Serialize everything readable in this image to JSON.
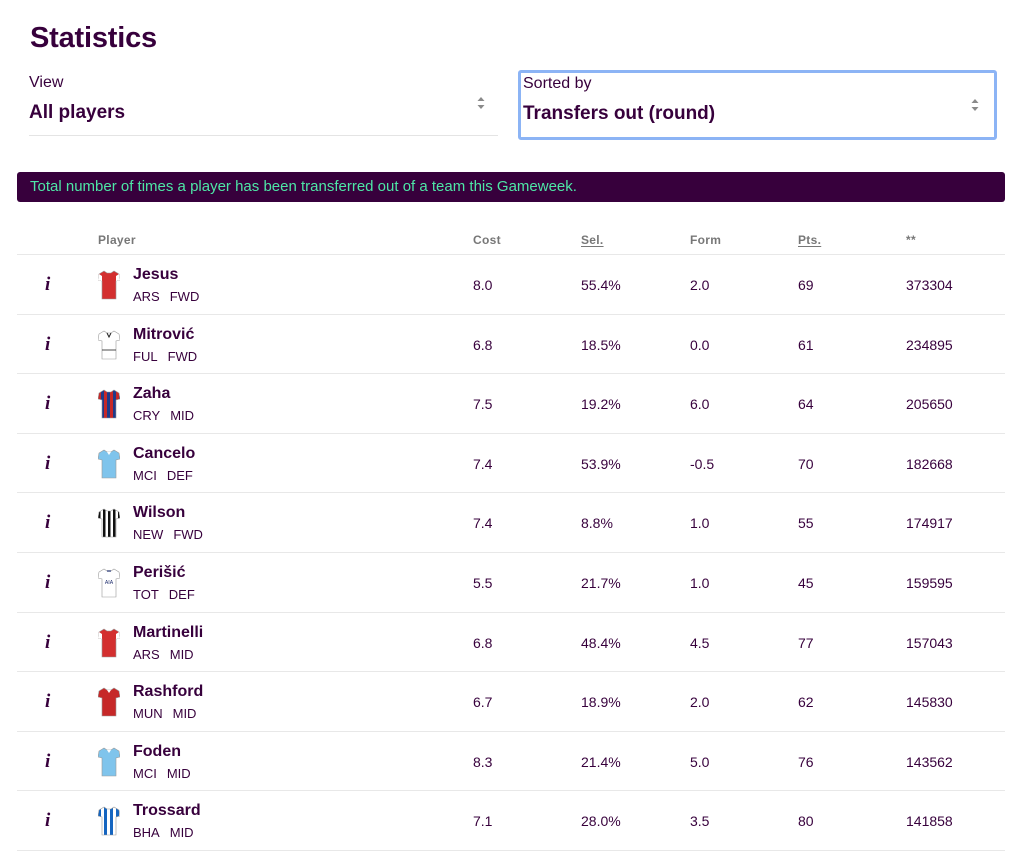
{
  "page": {
    "title": "Statistics"
  },
  "filters": {
    "view": {
      "label": "View",
      "value": "All players"
    },
    "sort": {
      "label": "Sorted by",
      "value": "Transfers out (round)"
    }
  },
  "banner": {
    "text": "Total number of times a player has been transferred out of a team this Gameweek."
  },
  "table": {
    "columns": {
      "player": "Player",
      "cost": "Cost",
      "sel": "Sel.",
      "form": "Form",
      "pts": "Pts.",
      "stat": "**"
    },
    "rows": [
      {
        "name": "Jesus",
        "team": "ARS",
        "pos": "FWD",
        "cost": "8.0",
        "sel": "55.4%",
        "form": "2.0",
        "pts": "69",
        "stat": "373304",
        "shirt": "ars"
      },
      {
        "name": "Mitrović",
        "team": "FUL",
        "pos": "FWD",
        "cost": "6.8",
        "sel": "18.5%",
        "form": "0.0",
        "pts": "61",
        "stat": "234895",
        "shirt": "ful"
      },
      {
        "name": "Zaha",
        "team": "CRY",
        "pos": "MID",
        "cost": "7.5",
        "sel": "19.2%",
        "form": "6.0",
        "pts": "64",
        "stat": "205650",
        "shirt": "cry"
      },
      {
        "name": "Cancelo",
        "team": "MCI",
        "pos": "DEF",
        "cost": "7.4",
        "sel": "53.9%",
        "form": "-0.5",
        "pts": "70",
        "stat": "182668",
        "shirt": "mci"
      },
      {
        "name": "Wilson",
        "team": "NEW",
        "pos": "FWD",
        "cost": "7.4",
        "sel": "8.8%",
        "form": "1.0",
        "pts": "55",
        "stat": "174917",
        "shirt": "new"
      },
      {
        "name": "Perišić",
        "team": "TOT",
        "pos": "DEF",
        "cost": "5.5",
        "sel": "21.7%",
        "form": "1.0",
        "pts": "45",
        "stat": "159595",
        "shirt": "tot"
      },
      {
        "name": "Martinelli",
        "team": "ARS",
        "pos": "MID",
        "cost": "6.8",
        "sel": "48.4%",
        "form": "4.5",
        "pts": "77",
        "stat": "157043",
        "shirt": "ars"
      },
      {
        "name": "Rashford",
        "team": "MUN",
        "pos": "MID",
        "cost": "6.7",
        "sel": "18.9%",
        "form": "2.0",
        "pts": "62",
        "stat": "145830",
        "shirt": "mun"
      },
      {
        "name": "Foden",
        "team": "MCI",
        "pos": "MID",
        "cost": "8.3",
        "sel": "21.4%",
        "form": "5.0",
        "pts": "76",
        "stat": "143562",
        "shirt": "mci"
      },
      {
        "name": "Trossard",
        "team": "BHA",
        "pos": "MID",
        "cost": "7.1",
        "sel": "28.0%",
        "form": "3.5",
        "pts": "80",
        "stat": "141858",
        "shirt": "bha"
      }
    ]
  },
  "colors": {
    "brand": "#37003c",
    "banner_text": "#4ee6a6",
    "focus_border": "#8cb4f5"
  },
  "icons": {
    "info": "info-icon",
    "select": "select-arrows-icon",
    "shirt": "team-shirt-icon"
  },
  "info_glyph": "i"
}
